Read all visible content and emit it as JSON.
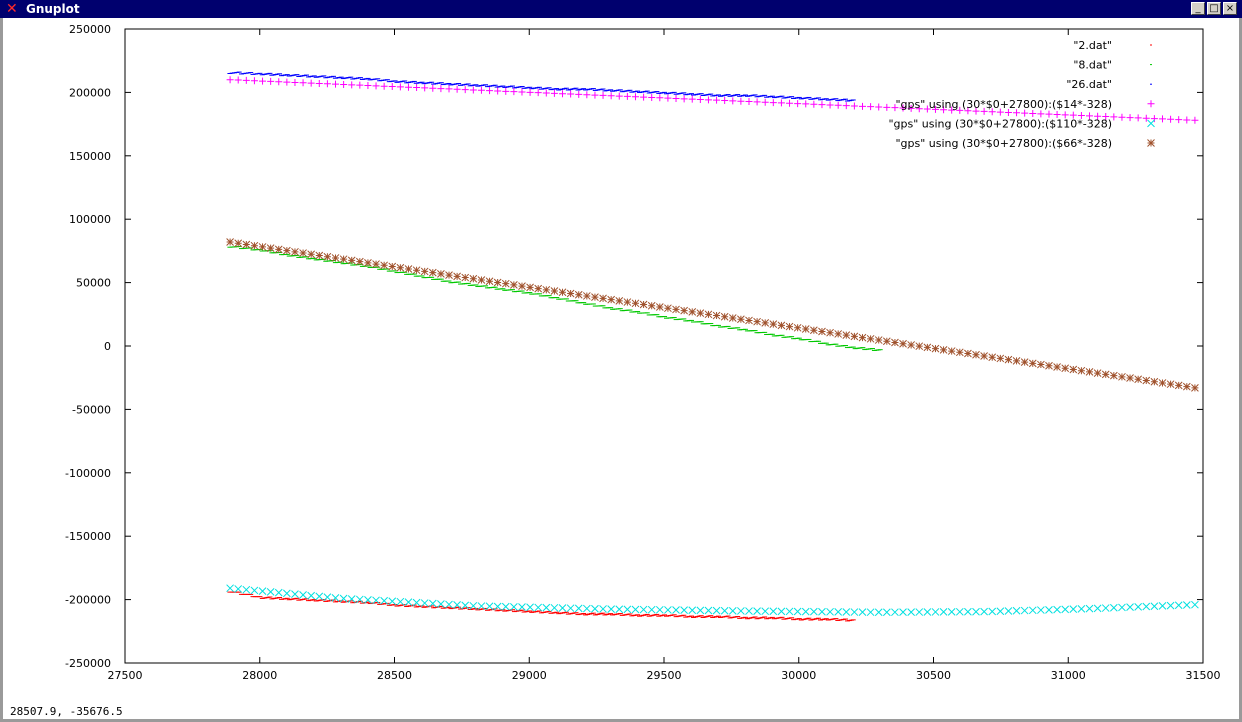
{
  "window": {
    "title": "Gnuplot",
    "icon": "x-icon",
    "buttons": {
      "minimize": "_",
      "maximize": "□",
      "close": "×"
    }
  },
  "status": {
    "coords": "28507.9, -35676.5"
  },
  "chart_data": {
    "type": "scatter",
    "title": "",
    "xlabel": "",
    "ylabel": "",
    "xlim": [
      27500,
      31500
    ],
    "ylim": [
      -250000,
      250000
    ],
    "xticks": [
      27500,
      28000,
      28500,
      29000,
      29500,
      30000,
      30500,
      31000,
      31500
    ],
    "yticks": [
      -250000,
      -200000,
      -150000,
      -100000,
      -50000,
      0,
      50000,
      100000,
      150000,
      200000,
      250000
    ],
    "grid": false,
    "legend_position": "top-right",
    "series": [
      {
        "name": "\"2.dat\"",
        "color": "#ff0000",
        "marker": "dot",
        "style": "dense",
        "x": [
          27880,
          28000,
          28100,
          28200,
          28300,
          28400,
          28500,
          28600,
          28700,
          28800,
          28900,
          29000,
          29100,
          29200,
          29300,
          29400,
          29500,
          29600,
          29700,
          29800,
          29900,
          30000,
          30100,
          30200
        ],
        "y": [
          -193000,
          -198000,
          -199000,
          -200000,
          -201000,
          -202000,
          -204000,
          -205000,
          -206000,
          -207000,
          -208000,
          -209000,
          -210000,
          -211000,
          -211000,
          -212000,
          -212000,
          -213000,
          -213000,
          -214000,
          -214000,
          -215000,
          -215000,
          -216000
        ]
      },
      {
        "name": "\"8.dat\"",
        "color": "#00c800",
        "marker": "dot",
        "style": "dense",
        "x": [
          27880,
          28000,
          28100,
          28200,
          28300,
          28400,
          28500,
          28600,
          28700,
          28800,
          28900,
          29000,
          29100,
          29200,
          29300,
          29400,
          29500,
          29600,
          29700,
          29800,
          29900,
          30000,
          30100,
          30200,
          30300
        ],
        "y": [
          79000,
          76000,
          72000,
          69000,
          66000,
          63000,
          59000,
          55000,
          51000,
          48000,
          45000,
          42000,
          38000,
          34000,
          30000,
          27000,
          23000,
          20000,
          16000,
          13000,
          9000,
          6000,
          2000,
          -1000,
          -3000
        ]
      },
      {
        "name": "\"26.dat\"",
        "color": "#0000ff",
        "marker": "dot",
        "style": "dense",
        "x": [
          27880,
          28000,
          28100,
          28200,
          28300,
          28400,
          28500,
          28600,
          28700,
          28800,
          28900,
          29000,
          29100,
          29200,
          29300,
          29400,
          29500,
          29600,
          29700,
          29800,
          29900,
          30000,
          30100,
          30200
        ],
        "y": [
          216000,
          215000,
          214000,
          213000,
          212000,
          211000,
          209000,
          208000,
          207000,
          206000,
          205000,
          204000,
          203000,
          203000,
          202000,
          201000,
          200000,
          199000,
          198000,
          198000,
          197000,
          196000,
          195000,
          194000
        ]
      },
      {
        "name": "\"gps\" using (30*$0+27800):($14*-328)",
        "color": "#ff00ff",
        "marker": "plus",
        "x_start": 27890,
        "x_end": 31470,
        "y_start": 210000,
        "y_end": 178000,
        "points": 120
      },
      {
        "name": "\"gps\" using (30*$0+27800):($110*-328)",
        "color": "#00e0e0",
        "marker": "cross",
        "x_start": 27890,
        "x_end": 31470,
        "y_anchor": [
          [
            27890,
            -191000
          ],
          [
            28300,
            -199000
          ],
          [
            28800,
            -205000
          ],
          [
            29300,
            -207500
          ],
          [
            29800,
            -209000
          ],
          [
            30300,
            -210000
          ],
          [
            30700,
            -209500
          ],
          [
            31100,
            -207000
          ],
          [
            31470,
            -204000
          ]
        ],
        "points": 120
      },
      {
        "name": "\"gps\" using (30*$0+27800):($66*-328)",
        "color": "#a0522d",
        "marker": "star",
        "x_start": 27890,
        "x_end": 31470,
        "y_start": 82000,
        "y_end": -33000,
        "points": 120
      }
    ]
  }
}
